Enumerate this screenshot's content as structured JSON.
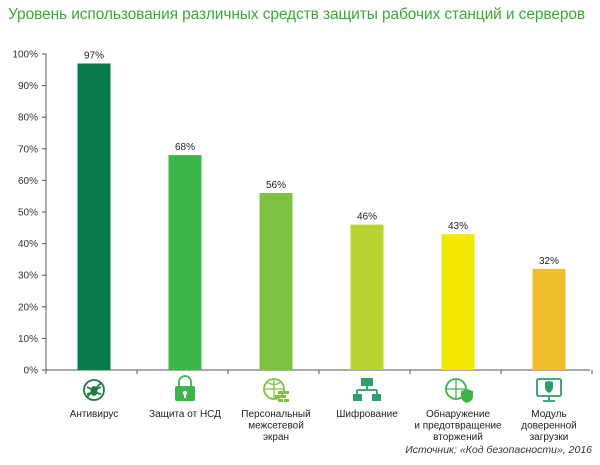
{
  "chart_data": {
    "type": "bar",
    "title": "Уровень использования различных средств защиты рабочих станций и серверов",
    "categories": [
      [
        "Антивирус"
      ],
      [
        "Защита от НСД"
      ],
      [
        "Персональный",
        "межсетевой",
        "экран"
      ],
      [
        "Шифрование"
      ],
      [
        "Обнаружение",
        "и предотвращение",
        "вторжений"
      ],
      [
        "Модуль",
        "доверенной",
        "загрузки"
      ]
    ],
    "values": [
      97,
      68,
      56,
      46,
      43,
      32
    ],
    "data_labels": [
      "97%",
      "68%",
      "56%",
      "46%",
      "43%",
      "32%"
    ],
    "bar_colors": [
      "#0a7a4a",
      "#3cb54a",
      "#7dc242",
      "#b7d433",
      "#f2e800",
      "#f0be2c"
    ],
    "icon_colors": [
      "#1d7a45",
      "#3cb54a",
      "#7dc242",
      "#2e9e6a",
      "#3cb54a",
      "#2e9e6a"
    ],
    "icons": [
      "bug-icon",
      "lock-icon",
      "firewall-globe-icon",
      "network-icon",
      "shield-globe-icon",
      "monitor-shield-icon"
    ],
    "ylim": [
      0,
      100
    ],
    "yticks": [
      0,
      10,
      20,
      30,
      40,
      50,
      60,
      70,
      80,
      90,
      100
    ],
    "ytick_labels": [
      "0%",
      "10%",
      "20%",
      "30%",
      "40%",
      "50%",
      "60%",
      "70%",
      "80%",
      "90%",
      "100%"
    ],
    "grid": false,
    "xlabel": "",
    "ylabel": ""
  },
  "source": "Источник: «Код безопасности», 2016"
}
